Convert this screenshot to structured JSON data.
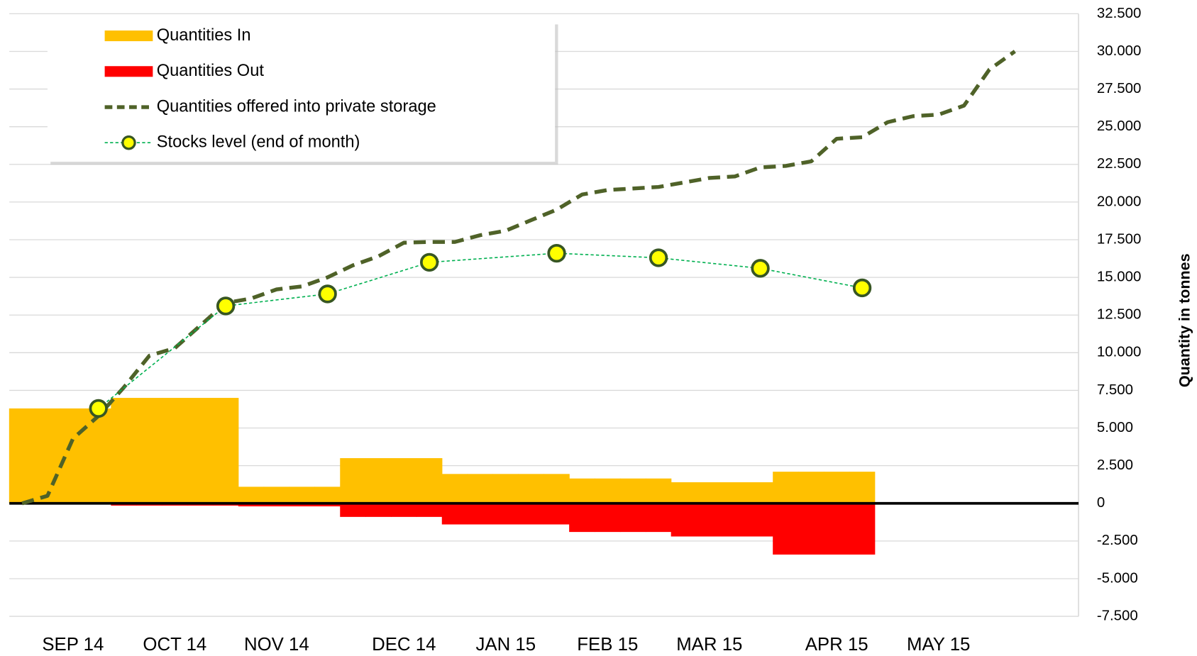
{
  "chart_data": {
    "type": "combo",
    "categories": [
      null,
      null,
      "SEP 14",
      null,
      null,
      null,
      "OCT 14",
      null,
      null,
      null,
      "NOV 14",
      null,
      null,
      null,
      null,
      "DEC 14",
      null,
      null,
      null,
      "JAN 15",
      null,
      null,
      null,
      "FEB 15",
      null,
      null,
      null,
      "MAR 15",
      null,
      null,
      null,
      null,
      "APR 15",
      null,
      null,
      null,
      "MAY 15",
      null,
      null,
      null,
      null,
      null
    ],
    "series": [
      {
        "name": "Quantities In",
        "type": "bar",
        "color": "#ffc000",
        "values": [
          6300,
          6300,
          6300,
          6300,
          7000,
          7000,
          7000,
          7000,
          7000,
          1100,
          1100,
          1100,
          1100,
          3000,
          3000,
          3000,
          3000,
          1950,
          1950,
          1950,
          1950,
          1950,
          1650,
          1650,
          1650,
          1650,
          1400,
          1400,
          1400,
          1400,
          2100,
          2100,
          2100,
          2100,
          null,
          null,
          null,
          null,
          null,
          null,
          null,
          null
        ]
      },
      {
        "name": "Quantities Out",
        "type": "bar",
        "color": "#ff0000",
        "values": [
          null,
          null,
          null,
          null,
          -150,
          -150,
          -150,
          -150,
          -150,
          -200,
          -200,
          -200,
          -200,
          -900,
          -900,
          -900,
          -900,
          -1400,
          -1400,
          -1400,
          -1400,
          -1400,
          -1900,
          -1900,
          -1900,
          -1900,
          -2200,
          -2200,
          -2200,
          -2200,
          -3400,
          -3400,
          -3400,
          -3400,
          null,
          null,
          null,
          null,
          null,
          null,
          null,
          null
        ]
      },
      {
        "name": "Quantities offered into private storage",
        "type": "line",
        "color": "#4f6228",
        "dashed": true,
        "values": [
          0,
          500,
          4300,
          5800,
          7700,
          9800,
          10300,
          11800,
          13300,
          13600,
          14200,
          14400,
          15000,
          15800,
          16400,
          17300,
          17350,
          17350,
          17800,
          18100,
          18800,
          19500,
          20500,
          20800,
          20900,
          21000,
          21300,
          21600,
          21700,
          22300,
          22400,
          22700,
          24200,
          24300,
          25300,
          25700,
          25800,
          26400,
          28800,
          30000,
          null,
          null
        ]
      },
      {
        "name": "Stocks level (end of month)",
        "type": "line",
        "color": "#00b050",
        "dashed": true,
        "marker": true,
        "marker_color": "#ffff00",
        "marker_edge": "#375623",
        "connect_gaps": true,
        "values": [
          null,
          null,
          null,
          6300,
          null,
          null,
          null,
          null,
          13100,
          null,
          null,
          null,
          13900,
          null,
          null,
          null,
          16000,
          null,
          null,
          null,
          null,
          16600,
          null,
          null,
          null,
          16300,
          null,
          null,
          null,
          15600,
          null,
          null,
          null,
          14300,
          null,
          null,
          null,
          null,
          null,
          null,
          null,
          null
        ]
      }
    ],
    "y_axis_label": "Quantity in tonnes",
    "ylim": [
      -7500,
      32500
    ],
    "yticks": [
      {
        "value": -7500,
        "label": "-7.500"
      },
      {
        "value": -5000,
        "label": "-5.000"
      },
      {
        "value": -2500,
        "label": "-2.500"
      },
      0,
      {
        "value": 2500,
        "label": "2.500"
      },
      {
        "value": 5000,
        "label": "5.000"
      },
      {
        "value": 7500,
        "label": "7.500"
      },
      {
        "value": 10000,
        "label": "10.000"
      },
      {
        "value": 12500,
        "label": "12.500"
      },
      {
        "value": 15000,
        "label": "15.000"
      },
      {
        "value": 17500,
        "label": "17.500"
      },
      {
        "value": 20000,
        "label": "20.000"
      },
      {
        "value": 22500,
        "label": "22.500"
      },
      {
        "value": 25000,
        "label": "25.000"
      },
      {
        "value": 27500,
        "label": "27.500"
      },
      {
        "value": 30000,
        "label": "30.000"
      },
      {
        "value": 32500,
        "label": "32.500"
      }
    ],
    "grid": true,
    "legend": "upper left",
    "y_axis_side": "right"
  }
}
